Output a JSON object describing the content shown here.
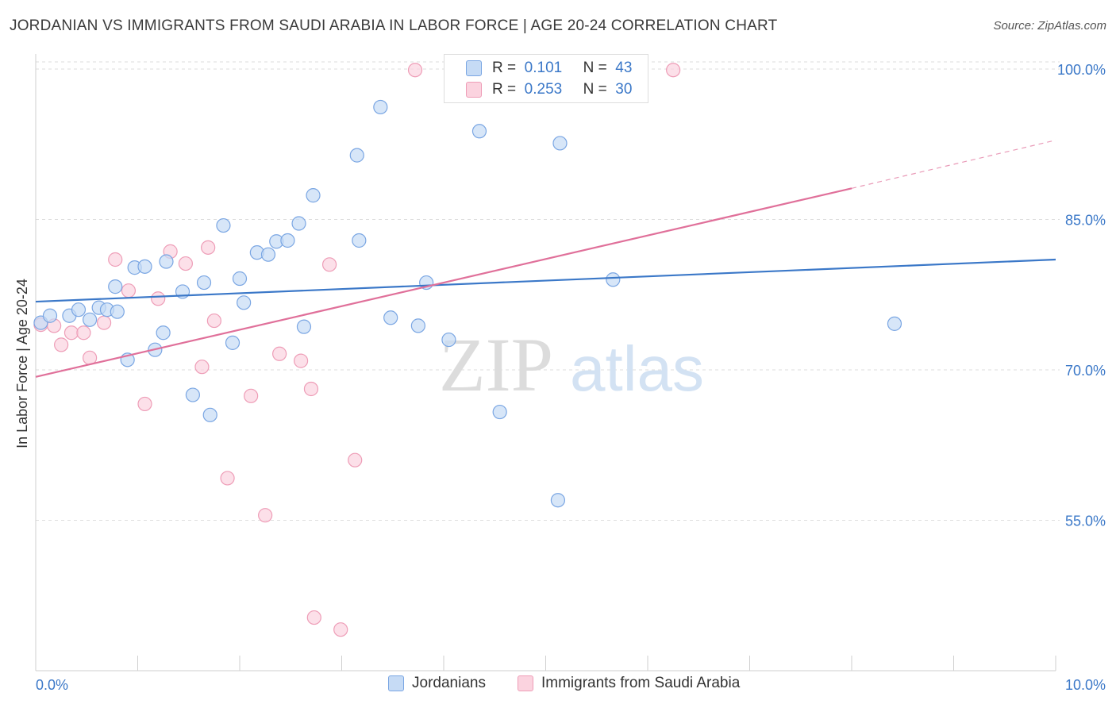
{
  "header": {
    "title": "JORDANIAN VS IMMIGRANTS FROM SAUDI ARABIA IN LABOR FORCE | AGE 20-24 CORRELATION CHART",
    "source": "Source: ZipAtlas.com"
  },
  "watermark": {
    "zip": "ZIP",
    "atlas": "atlas"
  },
  "stats": [
    {
      "r_label": "R =",
      "r_value": "0.101",
      "n_label": "N =",
      "n_value": "43",
      "color": "#aecbef",
      "border": "#6f9fe0"
    },
    {
      "r_label": "R =",
      "r_value": "0.253",
      "n_label": "N =",
      "n_value": "30",
      "color": "#f9c3d3",
      "border": "#ec8fae"
    }
  ],
  "legend": [
    {
      "label": "Jordanians",
      "color": "#c6dbf5",
      "border": "#7aa6e3"
    },
    {
      "label": "Immigrants from Saudi Arabia",
      "color": "#fbd3df",
      "border": "#ee9db7"
    }
  ],
  "chart_data": {
    "type": "scatter",
    "title": "JORDANIAN VS IMMIGRANTS FROM SAUDI ARABIA IN LABOR FORCE | AGE 20-24 CORRELATION CHART",
    "xlabel": "",
    "ylabel": "In Labor Force | Age 20-24",
    "xlim": [
      0,
      10
    ],
    "ylim": [
      40,
      101.5
    ],
    "x_tick_labels": [
      "0.0%",
      "10.0%"
    ],
    "y_ticks": [
      55,
      70,
      85,
      100
    ],
    "y_tick_labels": [
      "55.0%",
      "70.0%",
      "85.0%",
      "100.0%"
    ],
    "grid": true,
    "colors": {
      "series1": "#3b78c8",
      "series2": "#e0709a",
      "tick_label": "#3b78c8"
    },
    "series": [
      {
        "name": "Jordanians",
        "points": [
          [
            0.05,
            74.7
          ],
          [
            0.14,
            75.4
          ],
          [
            0.33,
            75.4
          ],
          [
            0.42,
            76.0
          ],
          [
            0.53,
            75.0
          ],
          [
            0.62,
            76.2
          ],
          [
            0.7,
            76.0
          ],
          [
            0.78,
            78.3
          ],
          [
            0.8,
            75.8
          ],
          [
            0.9,
            71.0
          ],
          [
            0.97,
            80.2
          ],
          [
            1.07,
            80.3
          ],
          [
            1.17,
            72.0
          ],
          [
            1.25,
            73.7
          ],
          [
            1.28,
            80.8
          ],
          [
            1.44,
            77.8
          ],
          [
            1.54,
            67.5
          ],
          [
            1.65,
            78.7
          ],
          [
            1.71,
            65.5
          ],
          [
            1.84,
            84.4
          ],
          [
            1.93,
            72.7
          ],
          [
            2.0,
            79.1
          ],
          [
            2.04,
            76.7
          ],
          [
            2.17,
            81.7
          ],
          [
            2.28,
            81.5
          ],
          [
            2.36,
            82.8
          ],
          [
            2.47,
            82.9
          ],
          [
            2.58,
            84.6
          ],
          [
            2.63,
            74.3
          ],
          [
            2.72,
            87.4
          ],
          [
            3.15,
            91.4
          ],
          [
            3.17,
            82.9
          ],
          [
            3.38,
            96.2
          ],
          [
            3.48,
            75.2
          ],
          [
            3.75,
            74.4
          ],
          [
            3.83,
            78.7
          ],
          [
            4.05,
            73.0
          ],
          [
            4.35,
            93.8
          ],
          [
            4.55,
            65.8
          ],
          [
            5.12,
            57.0
          ],
          [
            5.14,
            92.6
          ],
          [
            5.66,
            79.0
          ],
          [
            8.42,
            74.6
          ]
        ],
        "trend": {
          "x0": 0,
          "y0": 76.8,
          "x1": 10,
          "y1": 81.0
        }
      },
      {
        "name": "Immigrants from Saudi Arabia",
        "points": [
          [
            0.05,
            74.5
          ],
          [
            0.18,
            74.4
          ],
          [
            0.25,
            72.5
          ],
          [
            0.35,
            73.7
          ],
          [
            0.47,
            73.7
          ],
          [
            0.53,
            71.2
          ],
          [
            0.67,
            74.7
          ],
          [
            0.78,
            81.0
          ],
          [
            0.91,
            77.9
          ],
          [
            1.07,
            66.6
          ],
          [
            1.2,
            77.1
          ],
          [
            1.32,
            81.8
          ],
          [
            1.47,
            80.6
          ],
          [
            1.63,
            70.3
          ],
          [
            1.69,
            82.2
          ],
          [
            1.75,
            74.9
          ],
          [
            1.88,
            59.2
          ],
          [
            2.11,
            67.4
          ],
          [
            2.25,
            55.5
          ],
          [
            2.39,
            71.6
          ],
          [
            2.6,
            70.9
          ],
          [
            2.7,
            68.1
          ],
          [
            2.88,
            80.5
          ],
          [
            2.73,
            45.3
          ],
          [
            2.99,
            44.1
          ],
          [
            3.13,
            61.0
          ],
          [
            3.72,
            99.9
          ],
          [
            4.4,
            100.2
          ],
          [
            4.85,
            100.0
          ],
          [
            6.25,
            99.9
          ]
        ],
        "trend": {
          "x0": 0,
          "y0": 69.3,
          "x1": 8.0,
          "y1": 88.1
        },
        "trend_dashed": {
          "x0": 8.0,
          "y0": 88.1,
          "x1": 10,
          "y1": 92.9
        }
      }
    ]
  }
}
